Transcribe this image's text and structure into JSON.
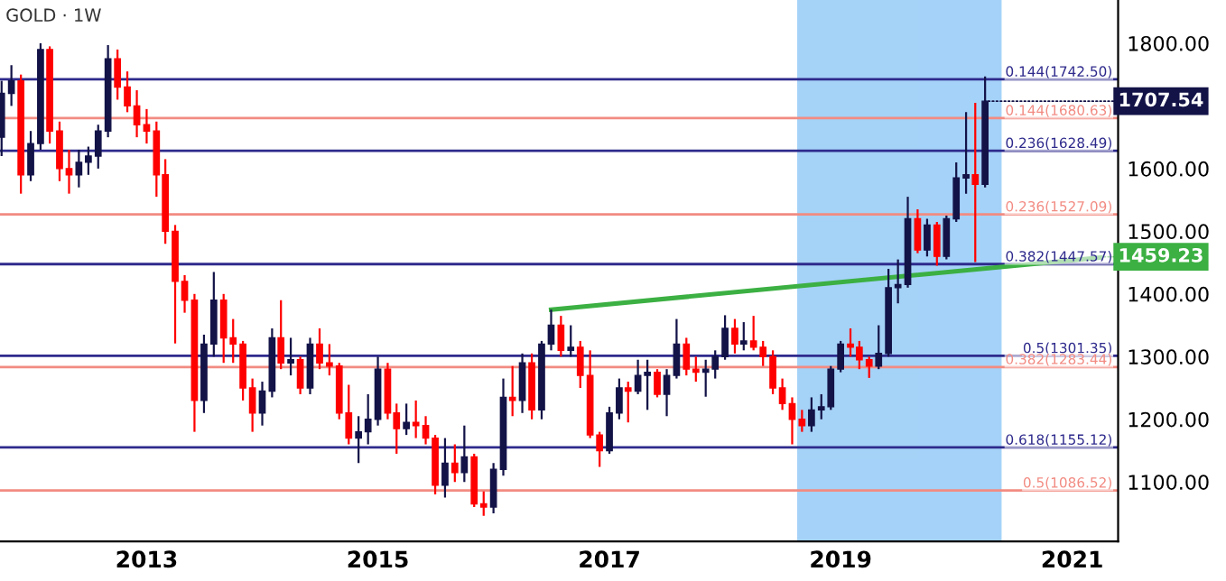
{
  "chart_data": {
    "type": "candlestick",
    "title": "GOLD · 1W",
    "x": [
      "2011-10",
      "2011-11",
      "2011-12",
      "2012-01",
      "2012-02",
      "2012-03",
      "2012-04",
      "2012-05",
      "2012-06",
      "2012-07",
      "2012-08",
      "2012-09",
      "2012-10",
      "2012-11",
      "2012-12",
      "2013-01",
      "2013-02",
      "2013-03",
      "2013-04",
      "2013-05",
      "2013-06",
      "2013-07",
      "2013-08",
      "2013-09",
      "2013-10",
      "2013-11",
      "2013-12",
      "2014-01",
      "2014-02",
      "2014-03",
      "2014-04",
      "2014-05",
      "2014-06",
      "2014-07",
      "2014-08",
      "2014-09",
      "2014-10",
      "2014-11",
      "2014-12",
      "2015-01",
      "2015-02",
      "2015-03",
      "2015-04",
      "2015-05",
      "2015-06",
      "2015-07",
      "2015-08",
      "2015-09",
      "2015-10",
      "2015-11",
      "2015-12",
      "2016-01",
      "2016-02",
      "2016-03",
      "2016-04",
      "2016-05",
      "2016-06",
      "2016-07",
      "2016-08",
      "2016-09",
      "2016-10",
      "2016-11",
      "2016-12",
      "2017-01",
      "2017-02",
      "2017-03",
      "2017-04",
      "2017-05",
      "2017-06",
      "2017-07",
      "2017-08",
      "2017-09",
      "2017-10",
      "2017-11",
      "2017-12",
      "2018-01",
      "2018-02",
      "2018-03",
      "2018-04",
      "2018-05",
      "2018-06",
      "2018-07",
      "2018-08",
      "2018-09",
      "2018-10",
      "2018-11",
      "2018-12",
      "2019-01",
      "2019-02",
      "2019-03",
      "2019-04",
      "2019-05",
      "2019-06",
      "2019-07",
      "2019-08",
      "2019-09",
      "2019-10",
      "2019-11",
      "2019-12",
      "2020-01",
      "2020-02",
      "2020-03",
      "2020-04"
    ],
    "ohlc": [
      [
        1650,
        1740,
        1620,
        1720
      ],
      [
        1720,
        1765,
        1700,
        1740
      ],
      [
        1740,
        1750,
        1560,
        1590
      ],
      [
        1590,
        1660,
        1580,
        1640
      ],
      [
        1640,
        1800,
        1630,
        1790
      ],
      [
        1790,
        1795,
        1640,
        1660
      ],
      [
        1660,
        1675,
        1580,
        1600
      ],
      [
        1600,
        1630,
        1560,
        1590
      ],
      [
        1590,
        1630,
        1570,
        1610
      ],
      [
        1610,
        1635,
        1590,
        1620
      ],
      [
        1620,
        1670,
        1600,
        1660
      ],
      [
        1660,
        1797,
        1650,
        1775
      ],
      [
        1775,
        1790,
        1710,
        1730
      ],
      [
        1730,
        1755,
        1690,
        1700
      ],
      [
        1700,
        1725,
        1650,
        1670
      ],
      [
        1670,
        1695,
        1640,
        1660
      ],
      [
        1660,
        1675,
        1555,
        1590
      ],
      [
        1590,
        1615,
        1480,
        1500
      ],
      [
        1500,
        1510,
        1321,
        1420
      ],
      [
        1420,
        1430,
        1370,
        1390
      ],
      [
        1390,
        1400,
        1180,
        1230
      ],
      [
        1230,
        1335,
        1210,
        1320
      ],
      [
        1320,
        1435,
        1300,
        1390
      ],
      [
        1390,
        1400,
        1290,
        1330
      ],
      [
        1330,
        1360,
        1290,
        1320
      ],
      [
        1320,
        1325,
        1230,
        1250
      ],
      [
        1250,
        1265,
        1180,
        1210
      ],
      [
        1210,
        1260,
        1190,
        1245
      ],
      [
        1245,
        1345,
        1235,
        1330
      ],
      [
        1330,
        1390,
        1280,
        1290
      ],
      [
        1290,
        1330,
        1270,
        1295
      ],
      [
        1295,
        1300,
        1240,
        1250
      ],
      [
        1250,
        1330,
        1240,
        1320
      ],
      [
        1320,
        1345,
        1280,
        1290
      ],
      [
        1290,
        1320,
        1270,
        1285
      ],
      [
        1285,
        1290,
        1200,
        1210
      ],
      [
        1210,
        1255,
        1160,
        1170
      ],
      [
        1170,
        1205,
        1130,
        1180
      ],
      [
        1180,
        1240,
        1160,
        1200
      ],
      [
        1200,
        1300,
        1190,
        1280
      ],
      [
        1280,
        1290,
        1200,
        1210
      ],
      [
        1210,
        1225,
        1145,
        1185
      ],
      [
        1185,
        1225,
        1175,
        1195
      ],
      [
        1195,
        1230,
        1170,
        1190
      ],
      [
        1190,
        1205,
        1160,
        1170
      ],
      [
        1170,
        1175,
        1080,
        1095
      ],
      [
        1095,
        1170,
        1075,
        1130
      ],
      [
        1130,
        1160,
        1100,
        1115
      ],
      [
        1115,
        1190,
        1100,
        1140
      ],
      [
        1140,
        1145,
        1060,
        1065
      ],
      [
        1065,
        1085,
        1046,
        1060
      ],
      [
        1060,
        1130,
        1050,
        1120
      ],
      [
        1120,
        1265,
        1110,
        1235
      ],
      [
        1235,
        1285,
        1205,
        1230
      ],
      [
        1230,
        1305,
        1210,
        1290
      ],
      [
        1290,
        1305,
        1200,
        1215
      ],
      [
        1215,
        1325,
        1200,
        1320
      ],
      [
        1320,
        1375,
        1310,
        1350
      ],
      [
        1350,
        1365,
        1300,
        1310
      ],
      [
        1310,
        1350,
        1300,
        1315
      ],
      [
        1315,
        1325,
        1250,
        1270
      ],
      [
        1270,
        1310,
        1170,
        1175
      ],
      [
        1175,
        1180,
        1124,
        1150
      ],
      [
        1150,
        1220,
        1145,
        1210
      ],
      [
        1210,
        1265,
        1200,
        1250
      ],
      [
        1250,
        1260,
        1195,
        1245
      ],
      [
        1245,
        1295,
        1240,
        1270
      ],
      [
        1270,
        1295,
        1215,
        1275
      ],
      [
        1275,
        1280,
        1235,
        1240
      ],
      [
        1240,
        1280,
        1205,
        1270
      ],
      [
        1270,
        1360,
        1265,
        1320
      ],
      [
        1320,
        1330,
        1270,
        1280
      ],
      [
        1280,
        1300,
        1260,
        1275
      ],
      [
        1275,
        1295,
        1236,
        1280
      ],
      [
        1280,
        1310,
        1265,
        1300
      ],
      [
        1300,
        1366,
        1295,
        1345
      ],
      [
        1345,
        1360,
        1305,
        1320
      ],
      [
        1320,
        1355,
        1310,
        1325
      ],
      [
        1325,
        1365,
        1310,
        1315
      ],
      [
        1315,
        1325,
        1285,
        1300
      ],
      [
        1300,
        1310,
        1240,
        1250
      ],
      [
        1250,
        1265,
        1215,
        1225
      ],
      [
        1225,
        1235,
        1160,
        1200
      ],
      [
        1200,
        1215,
        1180,
        1190
      ],
      [
        1190,
        1235,
        1180,
        1215
      ],
      [
        1215,
        1240,
        1200,
        1220
      ],
      [
        1220,
        1285,
        1215,
        1280
      ],
      [
        1280,
        1325,
        1275,
        1320
      ],
      [
        1320,
        1345,
        1300,
        1315
      ],
      [
        1315,
        1325,
        1280,
        1295
      ],
      [
        1295,
        1300,
        1266,
        1285
      ],
      [
        1285,
        1350,
        1280,
        1305
      ],
      [
        1305,
        1440,
        1300,
        1410
      ],
      [
        1410,
        1455,
        1385,
        1415
      ],
      [
        1415,
        1555,
        1410,
        1520
      ],
      [
        1520,
        1535,
        1465,
        1470
      ],
      [
        1470,
        1520,
        1460,
        1510
      ],
      [
        1510,
        1515,
        1445,
        1460
      ],
      [
        1460,
        1525,
        1455,
        1520
      ],
      [
        1520,
        1610,
        1515,
        1585
      ],
      [
        1585,
        1690,
        1560,
        1590
      ],
      [
        1590,
        1705,
        1451,
        1575
      ],
      [
        1575,
        1747,
        1570,
        1707.54
      ]
    ],
    "colors": [
      "#131348",
      "#131348",
      "#ff0000",
      "#131348",
      "#131348",
      "#ff0000",
      "#ff0000",
      "#ff0000",
      "#131348",
      "#131348",
      "#131348",
      "#131348",
      "#ff0000",
      "#ff0000",
      "#ff0000",
      "#ff0000",
      "#ff0000",
      "#ff0000",
      "#ff0000",
      "#ff0000",
      "#ff0000",
      "#131348",
      "#131348",
      "#ff0000",
      "#ff0000",
      "#ff0000",
      "#ff0000",
      "#131348",
      "#131348",
      "#ff0000",
      "#131348",
      "#ff0000",
      "#131348",
      "#ff0000",
      "#ff0000",
      "#ff0000",
      "#ff0000",
      "#131348",
      "#131348",
      "#131348",
      "#ff0000",
      "#ff0000",
      "#131348",
      "#ff0000",
      "#ff0000",
      "#ff0000",
      "#131348",
      "#ff0000",
      "#131348",
      "#ff0000",
      "#ff0000",
      "#131348",
      "#131348",
      "#ff0000",
      "#131348",
      "#ff0000",
      "#131348",
      "#131348",
      "#ff0000",
      "#131348",
      "#ff0000",
      "#ff0000",
      "#ff0000",
      "#131348",
      "#131348",
      "#ff0000",
      "#131348",
      "#131348",
      "#ff0000",
      "#131348",
      "#131348",
      "#ff0000",
      "#ff0000",
      "#131348",
      "#131348",
      "#131348",
      "#ff0000",
      "#131348",
      "#ff0000",
      "#ff0000",
      "#ff0000",
      "#ff0000",
      "#ff0000",
      "#ff0000",
      "#131348",
      "#131348",
      "#131348",
      "#131348",
      "#ff0000",
      "#ff0000",
      "#ff0000",
      "#131348",
      "#131348",
      "#131348",
      "#131348",
      "#ff0000",
      "#131348",
      "#ff0000",
      "#131348",
      "#131348",
      "#131348",
      "#ff0000",
      "#131348"
    ],
    "series": [
      {
        "type": "line",
        "color": "#3cb043",
        "x": [
          "2016-07",
          "2021-04"
        ],
        "values": [
          1375,
          1458
        ]
      }
    ],
    "xlim": [
      "2011-09-26",
      "2021-05-26"
    ],
    "xticks": [
      {
        "value": "2013",
        "label": "2013"
      },
      {
        "value": "2015",
        "label": "2015"
      },
      {
        "value": "2017",
        "label": "2017"
      },
      {
        "value": "2019",
        "label": "2019"
      },
      {
        "value": "2021",
        "label": "2021"
      }
    ],
    "ylim": [
      1005,
      1869
    ],
    "yticks": [
      {
        "value": 1100,
        "label": "1100.00"
      },
      {
        "value": 1200,
        "label": "1200.00"
      },
      {
        "value": 1300,
        "label": "1300.00"
      },
      {
        "value": 1400,
        "label": "1400.00"
      },
      {
        "value": 1500,
        "label": "1500.00"
      },
      {
        "value": 1600,
        "label": "1600.00"
      },
      {
        "value": 1800,
        "label": "1800.00"
      }
    ],
    "ref_lines": [
      {
        "axis": "y",
        "value": 1742.5,
        "label": "0.144(1742.50)",
        "color": "#2e2a8c"
      },
      {
        "axis": "y",
        "value": 1680.63,
        "label": "0.144(1680.63)",
        "color": "#f28b82"
      },
      {
        "axis": "y",
        "value": 1628.49,
        "label": "0.236(1628.49)",
        "color": "#2e2a8c"
      },
      {
        "axis": "y",
        "value": 1527.09,
        "label": "0.236(1527.09)",
        "color": "#f28b82"
      },
      {
        "axis": "y",
        "value": 1447.57,
        "label": "0.382(1447.57)",
        "color": "#2e2a8c"
      },
      {
        "axis": "y",
        "value": 1301.35,
        "label": "0.5(1301.35)",
        "color": "#2e2a8c"
      },
      {
        "axis": "y",
        "value": 1283.44,
        "label": "0.382(1283.44)",
        "color": "#f28b82"
      },
      {
        "axis": "y",
        "value": 1155.12,
        "label": "0.618(1155.12)",
        "color": "#2e2a8c"
      },
      {
        "axis": "y",
        "value": 1086.52,
        "label": "0.5(1086.52)",
        "color": "#f28b82"
      }
    ],
    "bands": [
      {
        "axis": "x",
        "from": "2018-08-20",
        "to": "2020-05-20",
        "color": "#7fbff5"
      }
    ],
    "annotations": [
      {
        "text": "1707.54",
        "x": "2020-04",
        "y": 1707.54
      },
      {
        "text": "1459.23",
        "x": "2021-04",
        "y": 1459.23
      }
    ],
    "grid": false,
    "legend": false
  }
}
